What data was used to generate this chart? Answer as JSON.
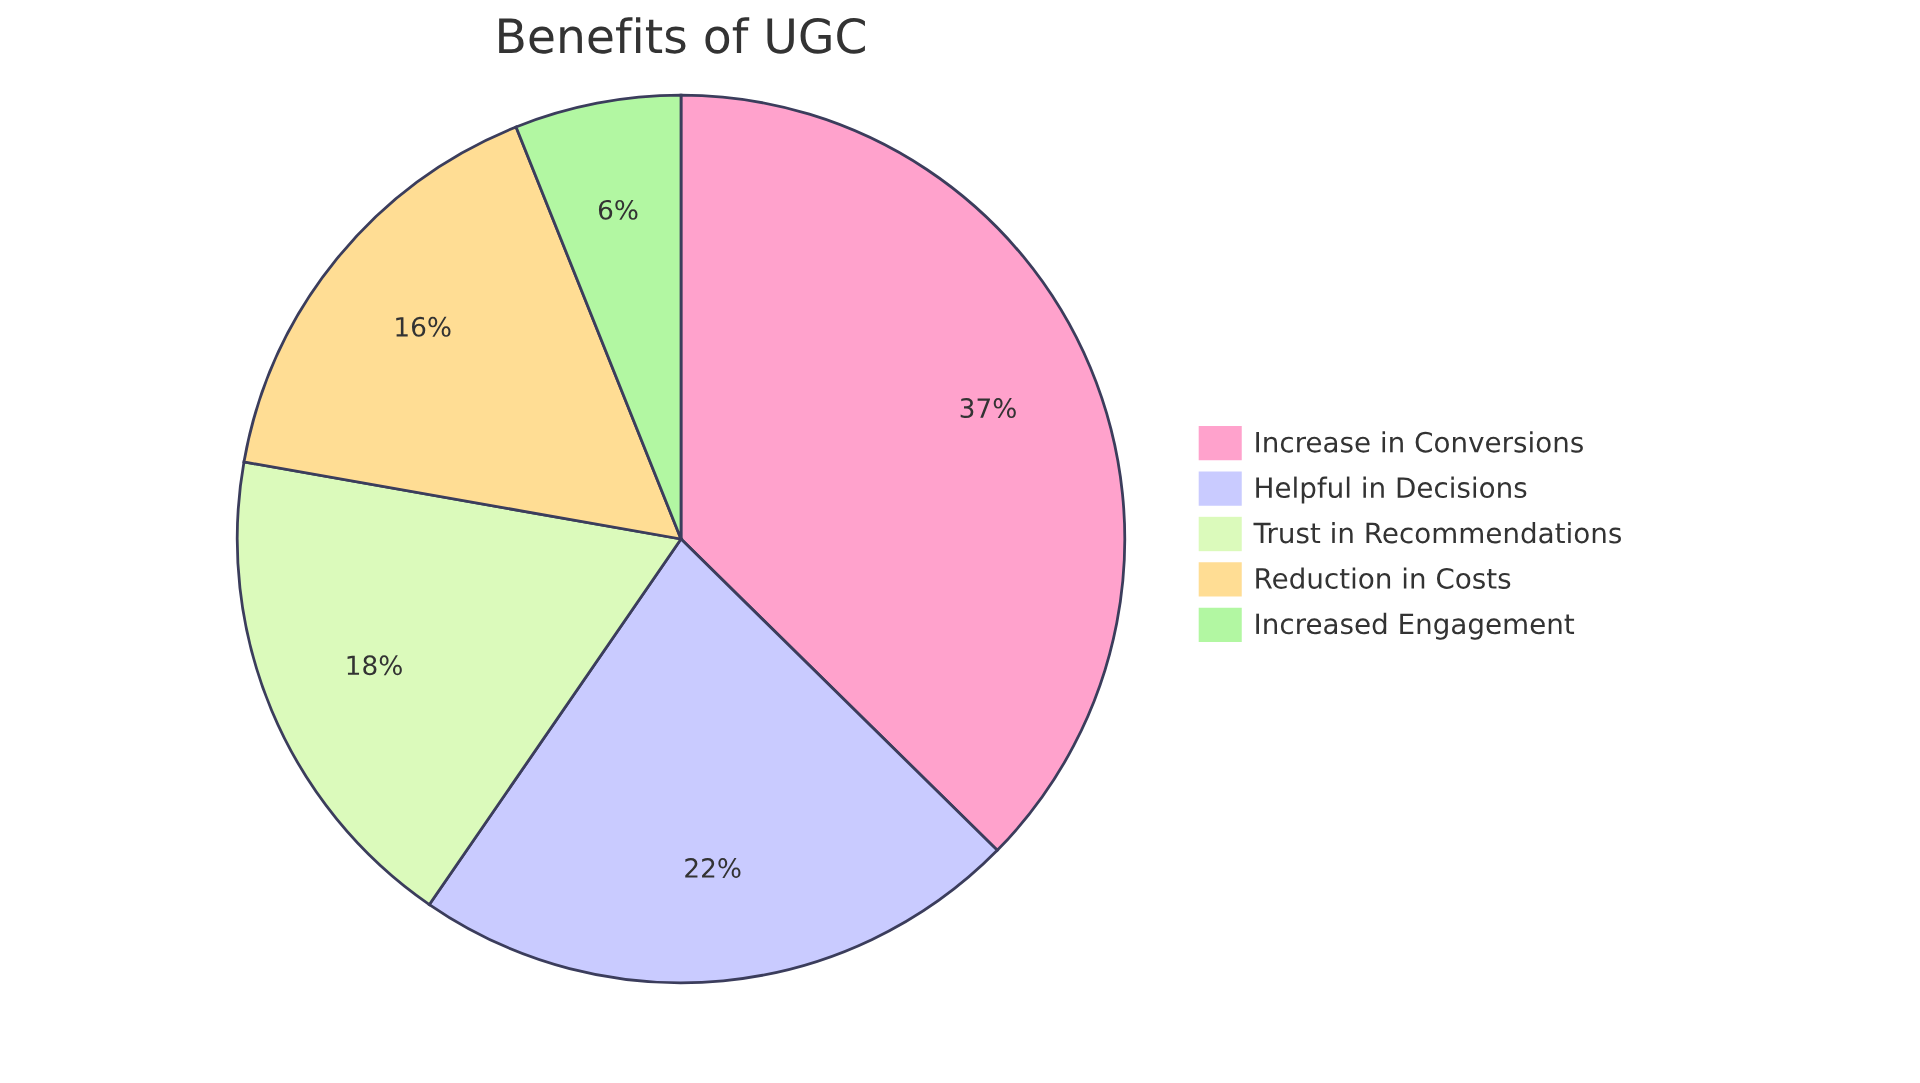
{
  "chart_data": {
    "type": "pie",
    "title": "Benefits of UGC",
    "categories": [
      "Increase in Conversions",
      "Helpful in Decisions",
      "Trust in Recommendations",
      "Reduction in Costs",
      "Increased Engagement"
    ],
    "values": [
      37,
      22,
      18,
      16,
      6
    ],
    "colors": [
      "#ffa2cc",
      "#c9cbff",
      "#dbfabb",
      "#ffdd94",
      "#b2f7a2"
    ],
    "value_labels": [
      "37%",
      "22%",
      "18%",
      "16%",
      "6%"
    ],
    "legend": "right"
  }
}
